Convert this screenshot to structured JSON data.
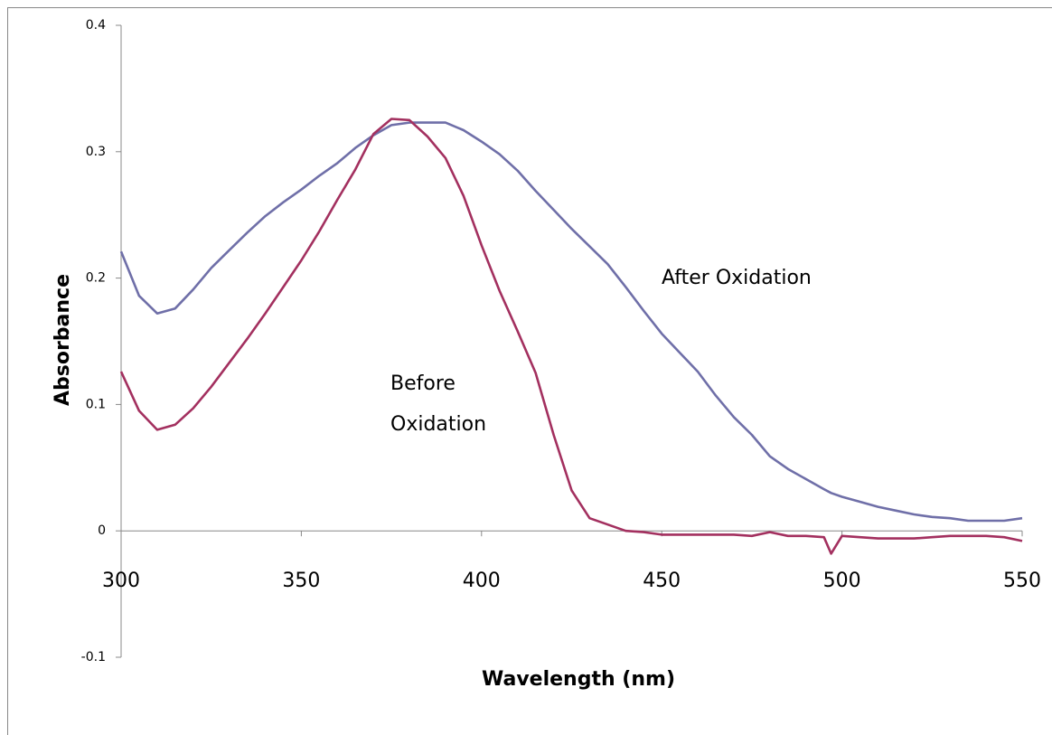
{
  "chart_data": {
    "type": "line",
    "x_label": "Wavelength (nm)",
    "y_label": "Absorbance",
    "annotations": [
      "After Oxidation",
      "Before",
      "Oxidation"
    ],
    "x": [
      300,
      305,
      310,
      315,
      320,
      325,
      330,
      335,
      340,
      345,
      350,
      355,
      360,
      365,
      370,
      375,
      380,
      385,
      390,
      395,
      400,
      405,
      410,
      415,
      420,
      425,
      430,
      435,
      440,
      445,
      450,
      455,
      460,
      465,
      470,
      475,
      480,
      485,
      490,
      495,
      497,
      500,
      505,
      510,
      515,
      520,
      525,
      530,
      535,
      540,
      545,
      550
    ],
    "series": [
      {
        "color": "#6f6fa8",
        "values": [
          0.221,
          0.186,
          0.172,
          0.176,
          0.191,
          0.208,
          0.222,
          0.236,
          0.249,
          0.26,
          0.27,
          0.281,
          0.291,
          0.303,
          0.313,
          0.321,
          0.323,
          0.323,
          0.323,
          0.317,
          0.308,
          0.298,
          0.285,
          0.269,
          0.254,
          0.239,
          0.225,
          0.211,
          0.193,
          0.174,
          0.156,
          0.141,
          0.126,
          0.107,
          0.09,
          0.076,
          0.059,
          0.049,
          0.041,
          0.033,
          0.03,
          0.027,
          0.023,
          0.019,
          0.016,
          0.013,
          0.011,
          0.01,
          0.008,
          0.008,
          0.008,
          0.01
        ]
      },
      {
        "color": "#a3305f",
        "values": [
          0.126,
          0.095,
          0.08,
          0.084,
          0.097,
          0.114,
          0.133,
          0.152,
          0.172,
          0.193,
          0.214,
          0.237,
          0.262,
          0.286,
          0.314,
          0.326,
          0.325,
          0.312,
          0.295,
          0.265,
          0.226,
          0.19,
          0.158,
          0.125,
          0.076,
          0.032,
          0.01,
          0.005,
          0.0,
          -0.001,
          -0.003,
          -0.003,
          -0.003,
          -0.003,
          -0.003,
          -0.004,
          -0.001,
          -0.004,
          -0.004,
          -0.005,
          -0.018,
          -0.004,
          -0.005,
          -0.006,
          -0.006,
          -0.006,
          -0.005,
          -0.004,
          -0.004,
          -0.004,
          -0.005,
          -0.008
        ]
      }
    ],
    "xlim": [
      300,
      550
    ],
    "xticks": [
      300,
      350,
      400,
      450,
      500,
      550
    ],
    "ylim": [
      -0.1,
      0.4
    ],
    "yticks": [
      -0.1,
      0,
      0.1,
      0.2,
      0.3,
      0.4
    ],
    "grid": false
  }
}
